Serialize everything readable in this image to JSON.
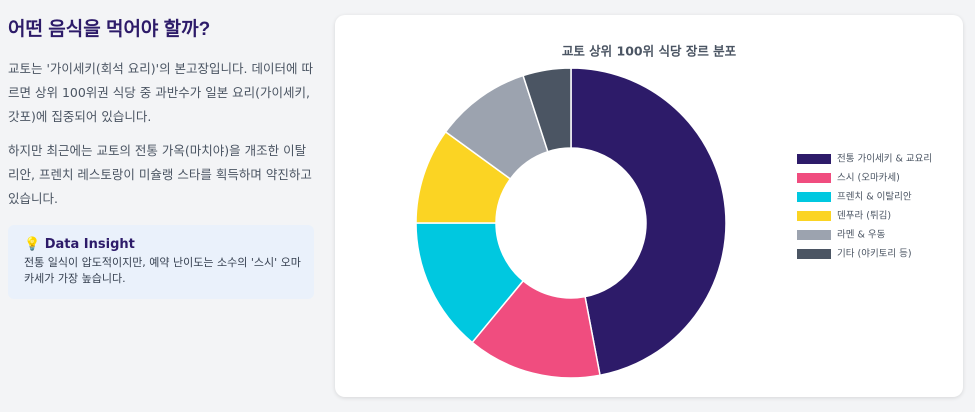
{
  "page": {
    "title": "어떤 음식을 먹어야 할까?",
    "paragraphs": [
      "교토는 '가이세키(회석 요리)'의 본고장입니다. 데이터에 따르면 상위 100위권 식당 중 과반수가 일본 요리(가이세키, 갓포)에 집중되어 있습니다.",
      "하지만 최근에는 교토의 전통 가옥(마치야)을 개조한 이탈리안, 프렌치 레스토랑이 미슐랭 스타를 획득하며 약진하고 있습니다."
    ],
    "insight": {
      "icon": "💡",
      "title": "Data Insight",
      "text": "전통 일식이 압도적이지만, 예약 난이도는 소수의 '스시' 오마카세가 가장 높습니다."
    }
  },
  "chart_data": {
    "type": "pie",
    "title": "교토 상위 100위 식당 장르 분포",
    "categories": [
      "전통 가이세키 & 교요리",
      "스시 (오마카세)",
      "프렌치 & 이탈리안",
      "덴푸라 (튀김)",
      "라멘 & 우동",
      "기타 (야키토리 등)"
    ],
    "values": [
      47,
      14,
      14,
      10,
      10,
      5
    ],
    "colors": [
      "#2d1b69",
      "#f04d7f",
      "#00c8e0",
      "#fbd423",
      "#9ca3af",
      "#4b5563"
    ],
    "donut": true,
    "legend": "right"
  }
}
